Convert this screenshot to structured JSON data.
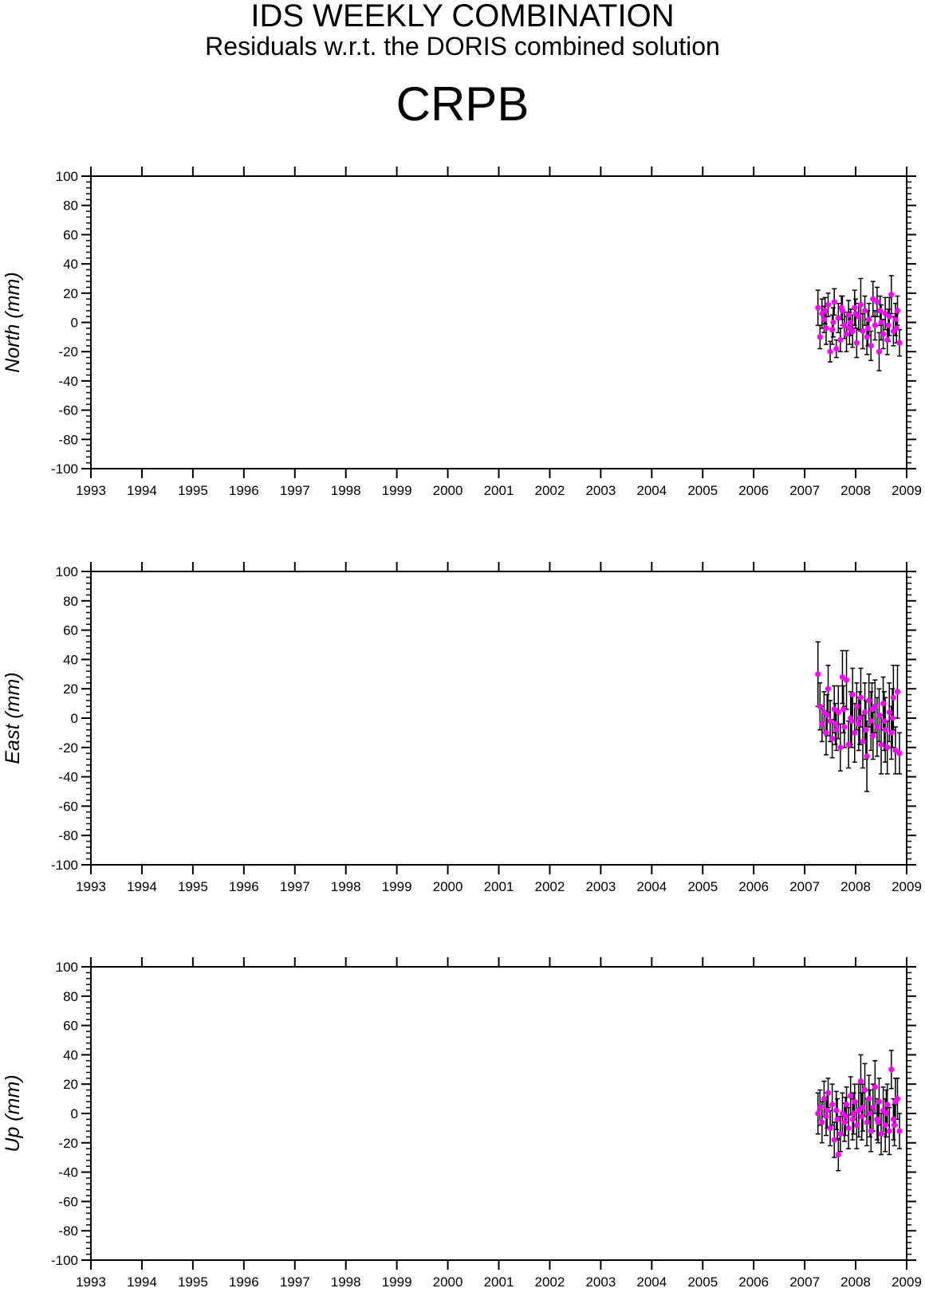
{
  "header": {
    "title": "IDS WEEKLY COMBINATION",
    "subtitle": "Residuals w.r.t. the DORIS combined solution",
    "station": "CRPB"
  },
  "colors": {
    "point": "#ff00ff",
    "errorbar": "#000000",
    "axis": "#000000"
  },
  "chart_data": [
    {
      "type": "scatter",
      "ylabel": "North (mm)",
      "xlim": [
        1993,
        2009
      ],
      "ylim": [
        -100,
        100
      ],
      "x_ticks": [
        "1993",
        "1994",
        "1995",
        "1996",
        "1997",
        "1998",
        "1999",
        "2000",
        "2001",
        "2002",
        "2003",
        "2004",
        "2005",
        "2006",
        "2007",
        "2008",
        "2009"
      ],
      "y_ticks": [
        "100",
        "80",
        "60",
        "40",
        "20",
        "0",
        "-20",
        "-40",
        "-60",
        "-80",
        "-100"
      ],
      "grid": false,
      "error_bars": true,
      "points": [
        [
          2007.26,
          10,
          12
        ],
        [
          2007.3,
          -10,
          8
        ],
        [
          2007.34,
          6,
          10
        ],
        [
          2007.38,
          2,
          9
        ],
        [
          2007.42,
          -4,
          11
        ],
        [
          2007.46,
          12,
          8
        ],
        [
          2007.5,
          -20,
          7
        ],
        [
          2007.54,
          -5,
          10
        ],
        [
          2007.58,
          14,
          9
        ],
        [
          2007.62,
          -18,
          6
        ],
        [
          2007.66,
          3,
          10
        ],
        [
          2007.7,
          -12,
          8
        ],
        [
          2007.74,
          8,
          10
        ],
        [
          2007.78,
          -2,
          9
        ],
        [
          2007.82,
          -8,
          12
        ],
        [
          2007.86,
          5,
          10
        ],
        [
          2007.9,
          0,
          9
        ],
        [
          2007.94,
          -6,
          11
        ],
        [
          2007.98,
          10,
          12
        ],
        [
          2008.02,
          -14,
          10
        ],
        [
          2008.06,
          4,
          9
        ],
        [
          2008.1,
          12,
          18
        ],
        [
          2008.14,
          -6,
          12
        ],
        [
          2008.18,
          8,
          10
        ],
        [
          2008.22,
          -10,
          12
        ],
        [
          2008.26,
          2,
          11
        ],
        [
          2008.3,
          -16,
          10
        ],
        [
          2008.34,
          16,
          12
        ],
        [
          2008.38,
          -2,
          10
        ],
        [
          2008.42,
          14,
          10
        ],
        [
          2008.46,
          -20,
          13
        ],
        [
          2008.5,
          0,
          12
        ],
        [
          2008.54,
          -8,
          10
        ],
        [
          2008.58,
          6,
          11
        ],
        [
          2008.62,
          -12,
          10
        ],
        [
          2008.66,
          4,
          13
        ],
        [
          2008.7,
          19,
          13
        ],
        [
          2008.74,
          -6,
          10
        ],
        [
          2008.78,
          2,
          11
        ],
        [
          2008.82,
          8,
          10
        ],
        [
          2008.86,
          -14,
          9
        ],
        [
          2007.4,
          8,
          9
        ],
        [
          2007.56,
          0,
          10
        ],
        [
          2007.88,
          -4,
          11
        ],
        [
          2008.0,
          6,
          10
        ],
        [
          2008.24,
          -4,
          12
        ],
        [
          2008.48,
          8,
          10
        ],
        [
          2008.64,
          -2,
          11
        ],
        [
          2008.8,
          -4,
          10
        ],
        [
          2007.72,
          10,
          8
        ]
      ]
    },
    {
      "type": "scatter",
      "ylabel": "East (mm)",
      "xlim": [
        1993,
        2009
      ],
      "ylim": [
        -100,
        100
      ],
      "x_ticks": [
        "1993",
        "1994",
        "1995",
        "1996",
        "1997",
        "1998",
        "1999",
        "2000",
        "2001",
        "2002",
        "2003",
        "2004",
        "2005",
        "2006",
        "2007",
        "2008",
        "2009"
      ],
      "y_ticks": [
        "100",
        "80",
        "60",
        "40",
        "20",
        "0",
        "-20",
        "-40",
        "-60",
        "-80",
        "-100"
      ],
      "grid": false,
      "error_bars": true,
      "points": [
        [
          2007.26,
          30,
          22
        ],
        [
          2007.3,
          8,
          16
        ],
        [
          2007.34,
          -4,
          12
        ],
        [
          2007.38,
          4,
          14
        ],
        [
          2007.42,
          -10,
          15
        ],
        [
          2007.46,
          20,
          16
        ],
        [
          2007.5,
          -2,
          14
        ],
        [
          2007.54,
          -14,
          13
        ],
        [
          2007.58,
          6,
          16
        ],
        [
          2007.62,
          -8,
          14
        ],
        [
          2007.66,
          4,
          18
        ],
        [
          2007.7,
          -20,
          16
        ],
        [
          2007.74,
          28,
          18
        ],
        [
          2007.78,
          -6,
          14
        ],
        [
          2007.82,
          26,
          20
        ],
        [
          2007.86,
          -18,
          16
        ],
        [
          2007.9,
          0,
          18
        ],
        [
          2007.94,
          16,
          18
        ],
        [
          2007.98,
          -10,
          20
        ],
        [
          2008.02,
          8,
          16
        ],
        [
          2008.06,
          -4,
          18
        ],
        [
          2008.1,
          14,
          20
        ],
        [
          2008.14,
          -16,
          18
        ],
        [
          2008.18,
          4,
          20
        ],
        [
          2008.22,
          -26,
          24
        ],
        [
          2008.26,
          12,
          18
        ],
        [
          2008.3,
          -2,
          20
        ],
        [
          2008.34,
          -12,
          16
        ],
        [
          2008.38,
          8,
          18
        ],
        [
          2008.42,
          -6,
          20
        ],
        [
          2008.46,
          2,
          18
        ],
        [
          2008.5,
          -18,
          20
        ],
        [
          2008.54,
          10,
          18
        ],
        [
          2008.58,
          -8,
          22
        ],
        [
          2008.62,
          -20,
          18
        ],
        [
          2008.66,
          4,
          20
        ],
        [
          2008.7,
          -10,
          18
        ],
        [
          2008.74,
          14,
          22
        ],
        [
          2008.78,
          -22,
          16
        ],
        [
          2008.82,
          18,
          18
        ],
        [
          2008.86,
          -24,
          14
        ],
        [
          2007.44,
          2,
          14
        ],
        [
          2007.6,
          -4,
          14
        ],
        [
          2007.76,
          6,
          16
        ],
        [
          2007.92,
          -2,
          18
        ],
        [
          2008.08,
          0,
          18
        ],
        [
          2008.2,
          -8,
          20
        ],
        [
          2008.32,
          6,
          18
        ],
        [
          2008.56,
          -2,
          20
        ],
        [
          2008.72,
          0,
          20
        ]
      ]
    },
    {
      "type": "scatter",
      "ylabel": "Up (mm)",
      "xlim": [
        1993,
        2009
      ],
      "ylim": [
        -100,
        100
      ],
      "x_ticks": [
        "1993",
        "1994",
        "1995",
        "1996",
        "1997",
        "1998",
        "1999",
        "2000",
        "2001",
        "2002",
        "2003",
        "2004",
        "2005",
        "2006",
        "2007",
        "2008",
        "2009"
      ],
      "y_ticks": [
        "100",
        "80",
        "60",
        "40",
        "20",
        "0",
        "-20",
        "-40",
        "-60",
        "-80",
        "-100"
      ],
      "grid": false,
      "error_bars": true,
      "points": [
        [
          2007.26,
          0,
          14
        ],
        [
          2007.3,
          4,
          12
        ],
        [
          2007.34,
          -6,
          14
        ],
        [
          2007.38,
          10,
          12
        ],
        [
          2007.42,
          -2,
          13
        ],
        [
          2007.46,
          14,
          10
        ],
        [
          2007.5,
          -10,
          12
        ],
        [
          2007.54,
          6,
          14
        ],
        [
          2007.58,
          -18,
          12
        ],
        [
          2007.62,
          2,
          13
        ],
        [
          2007.66,
          -28,
          11
        ],
        [
          2007.7,
          -14,
          12
        ],
        [
          2007.74,
          0,
          14
        ],
        [
          2007.78,
          -6,
          13
        ],
        [
          2007.82,
          6,
          12
        ],
        [
          2007.86,
          -10,
          14
        ],
        [
          2007.9,
          12,
          13
        ],
        [
          2007.94,
          -4,
          14
        ],
        [
          2007.98,
          8,
          12
        ],
        [
          2008.02,
          -8,
          16
        ],
        [
          2008.06,
          2,
          18
        ],
        [
          2008.1,
          22,
          18
        ],
        [
          2008.14,
          4,
          16
        ],
        [
          2008.18,
          16,
          18
        ],
        [
          2008.22,
          -6,
          16
        ],
        [
          2008.26,
          10,
          16
        ],
        [
          2008.3,
          -12,
          14
        ],
        [
          2008.34,
          4,
          16
        ],
        [
          2008.38,
          18,
          18
        ],
        [
          2008.42,
          -4,
          14
        ],
        [
          2008.46,
          8,
          16
        ],
        [
          2008.5,
          -14,
          14
        ],
        [
          2008.54,
          2,
          16
        ],
        [
          2008.58,
          -8,
          18
        ],
        [
          2008.62,
          6,
          14
        ],
        [
          2008.66,
          -12,
          16
        ],
        [
          2008.7,
          30,
          13
        ],
        [
          2008.74,
          -4,
          14
        ],
        [
          2008.78,
          8,
          16
        ],
        [
          2008.82,
          10,
          14
        ],
        [
          2008.86,
          -12,
          12
        ],
        [
          2007.44,
          2,
          12
        ],
        [
          2007.64,
          -4,
          14
        ],
        [
          2007.8,
          -2,
          13
        ],
        [
          2007.96,
          0,
          14
        ],
        [
          2008.12,
          -2,
          16
        ],
        [
          2008.28,
          0,
          16
        ],
        [
          2008.44,
          -6,
          14
        ],
        [
          2008.6,
          0,
          16
        ],
        [
          2008.76,
          -8,
          14
        ]
      ]
    }
  ]
}
